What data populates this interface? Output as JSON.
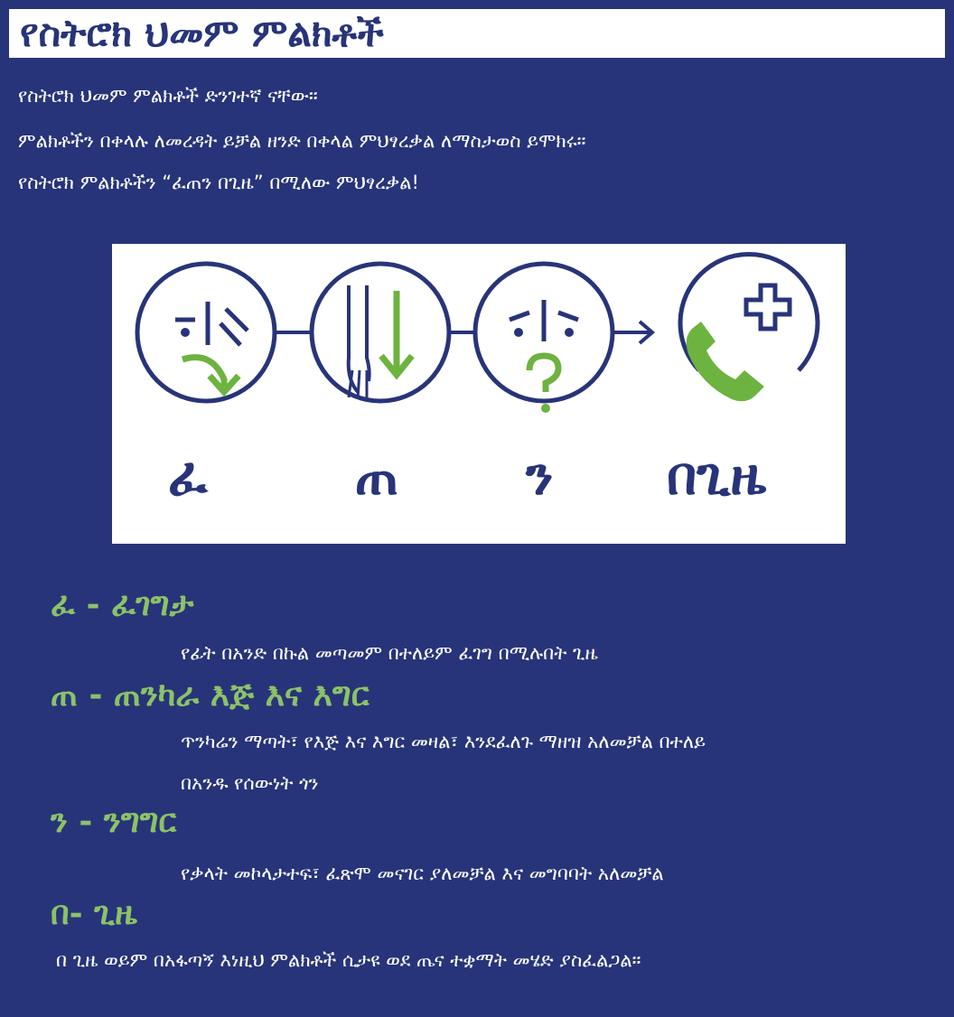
{
  "title": "የስትሮክ ህመም ምልክቶች",
  "intro": [
    "የስትሮክ ህመም ምልክቶች ድንገተኛ ናቸው።",
    "ምልክቶችን በቀላሉ ለመረዳት ይቻል ዘንድ በቀላል ምህፃረቃል ለማስታወስ ይሞክሩ።",
    "የስትሮክ ምልክቶችን “ፈጠን በጊዜ” በሚለው ምህፃረቃል!"
  ],
  "panel": {
    "letters": [
      "ፈ",
      "ጠ",
      "ን",
      "በጊዜ"
    ],
    "icons": [
      "facial-droop-icon",
      "arm-weakness-icon",
      "speech-difficulty-icon",
      "call-emergency-icon"
    ],
    "colors": {
      "navy": "#283479",
      "green": "#6db33f"
    }
  },
  "sections": [
    {
      "heading": "ፈ - ፈገግታ",
      "lines": [
        "የፊት በአንድ በኩል መጣመም በተለይም ፈገግ በሚሉበት ጊዜ"
      ]
    },
    {
      "heading": "ጠ - ጠንካራ እጅ እና እግር",
      "lines": [
        "ጥንካሬን ማጣት፣ የእጅ እና እግር መዛል፣ እንደፈለጉ ማዘዝ አለመቻል በተለይ",
        "በአንዱ የሰውነት ጎን"
      ]
    },
    {
      "heading": "ን - ንግግር",
      "lines": [
        "የቃላት መኮላታተፍ፣ ፈጽሞ መናገር ያለመቻል እና መግባባት አለመቻል"
      ]
    },
    {
      "heading": "በ- ጊዜ",
      "lines": [
        "በ ጊዜ ወይም በአፋጣኝ እነዚህ ምልክቶች ሲታዩ ወደ ጤና ተቋማት መሄድ ያስፈልጋል።"
      ]
    }
  ],
  "colors": {
    "background": "#283479",
    "heading_green": "#8cc268",
    "title_bg": "#ffffff"
  }
}
